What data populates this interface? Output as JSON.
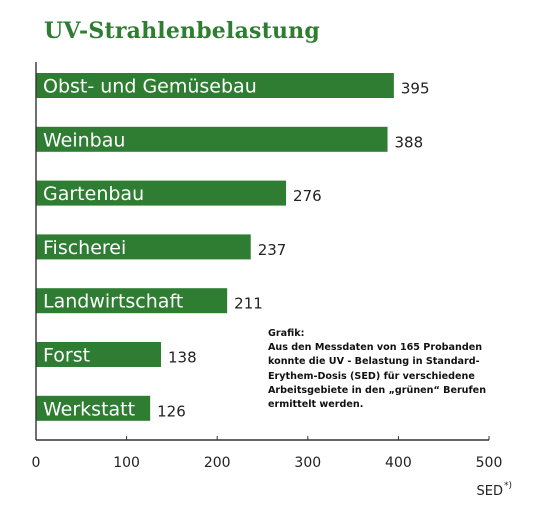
{
  "chart_data": {
    "type": "bar",
    "orientation": "horizontal",
    "title": "UV-Strahlenbelastung",
    "categories": [
      "Obst- und Gemüsebau",
      "Weinbau",
      "Gartenbau",
      "Fischerei",
      "Landwirtschaft",
      "Forst",
      "Werkstatt"
    ],
    "values": [
      395,
      388,
      276,
      237,
      211,
      138,
      126
    ],
    "xlim": [
      0,
      500
    ],
    "xticks": [
      0,
      100,
      200,
      300,
      400,
      500
    ],
    "xlabel": "SED",
    "xlabel_superscript": "*)",
    "grid": false,
    "bar_color": "#2e7d32",
    "annotation": [
      "Grafik:",
      "Aus den Messdaten von 165 Probanden",
      "konnte die UV - Belastung in Standard-",
      "Erythem-Dosis (SED) für verschiedene",
      "Arbeitsgebiete in den „grünen“ Berufen",
      "ermittelt werden."
    ]
  }
}
